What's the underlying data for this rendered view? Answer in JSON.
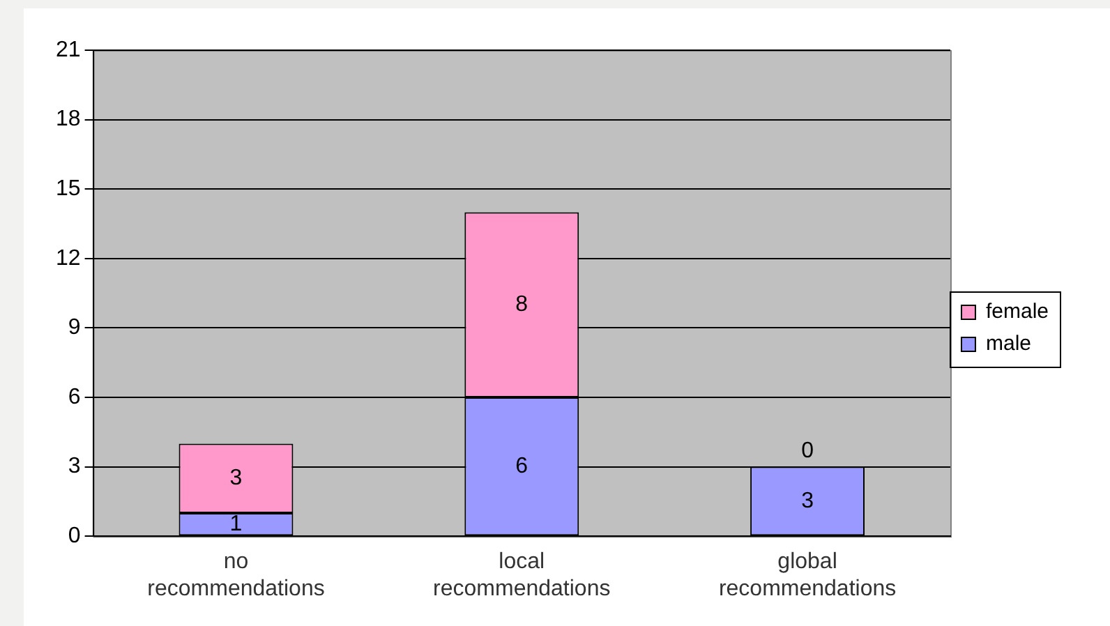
{
  "chart_data": {
    "type": "bar",
    "categories": [
      "no recommendations",
      "local recommendations",
      "global recommendations"
    ],
    "series": [
      {
        "name": "male",
        "color": "#9999ff",
        "values": [
          1,
          6,
          3
        ]
      },
      {
        "name": "female",
        "color": "#ff99cc",
        "values": [
          3,
          8,
          0
        ]
      }
    ],
    "stacked": true,
    "ylim": [
      0,
      21
    ],
    "yticks": [
      0,
      3,
      6,
      9,
      12,
      15,
      18,
      21
    ],
    "grid": "y",
    "legend": "right",
    "data_labels": true
  }
}
